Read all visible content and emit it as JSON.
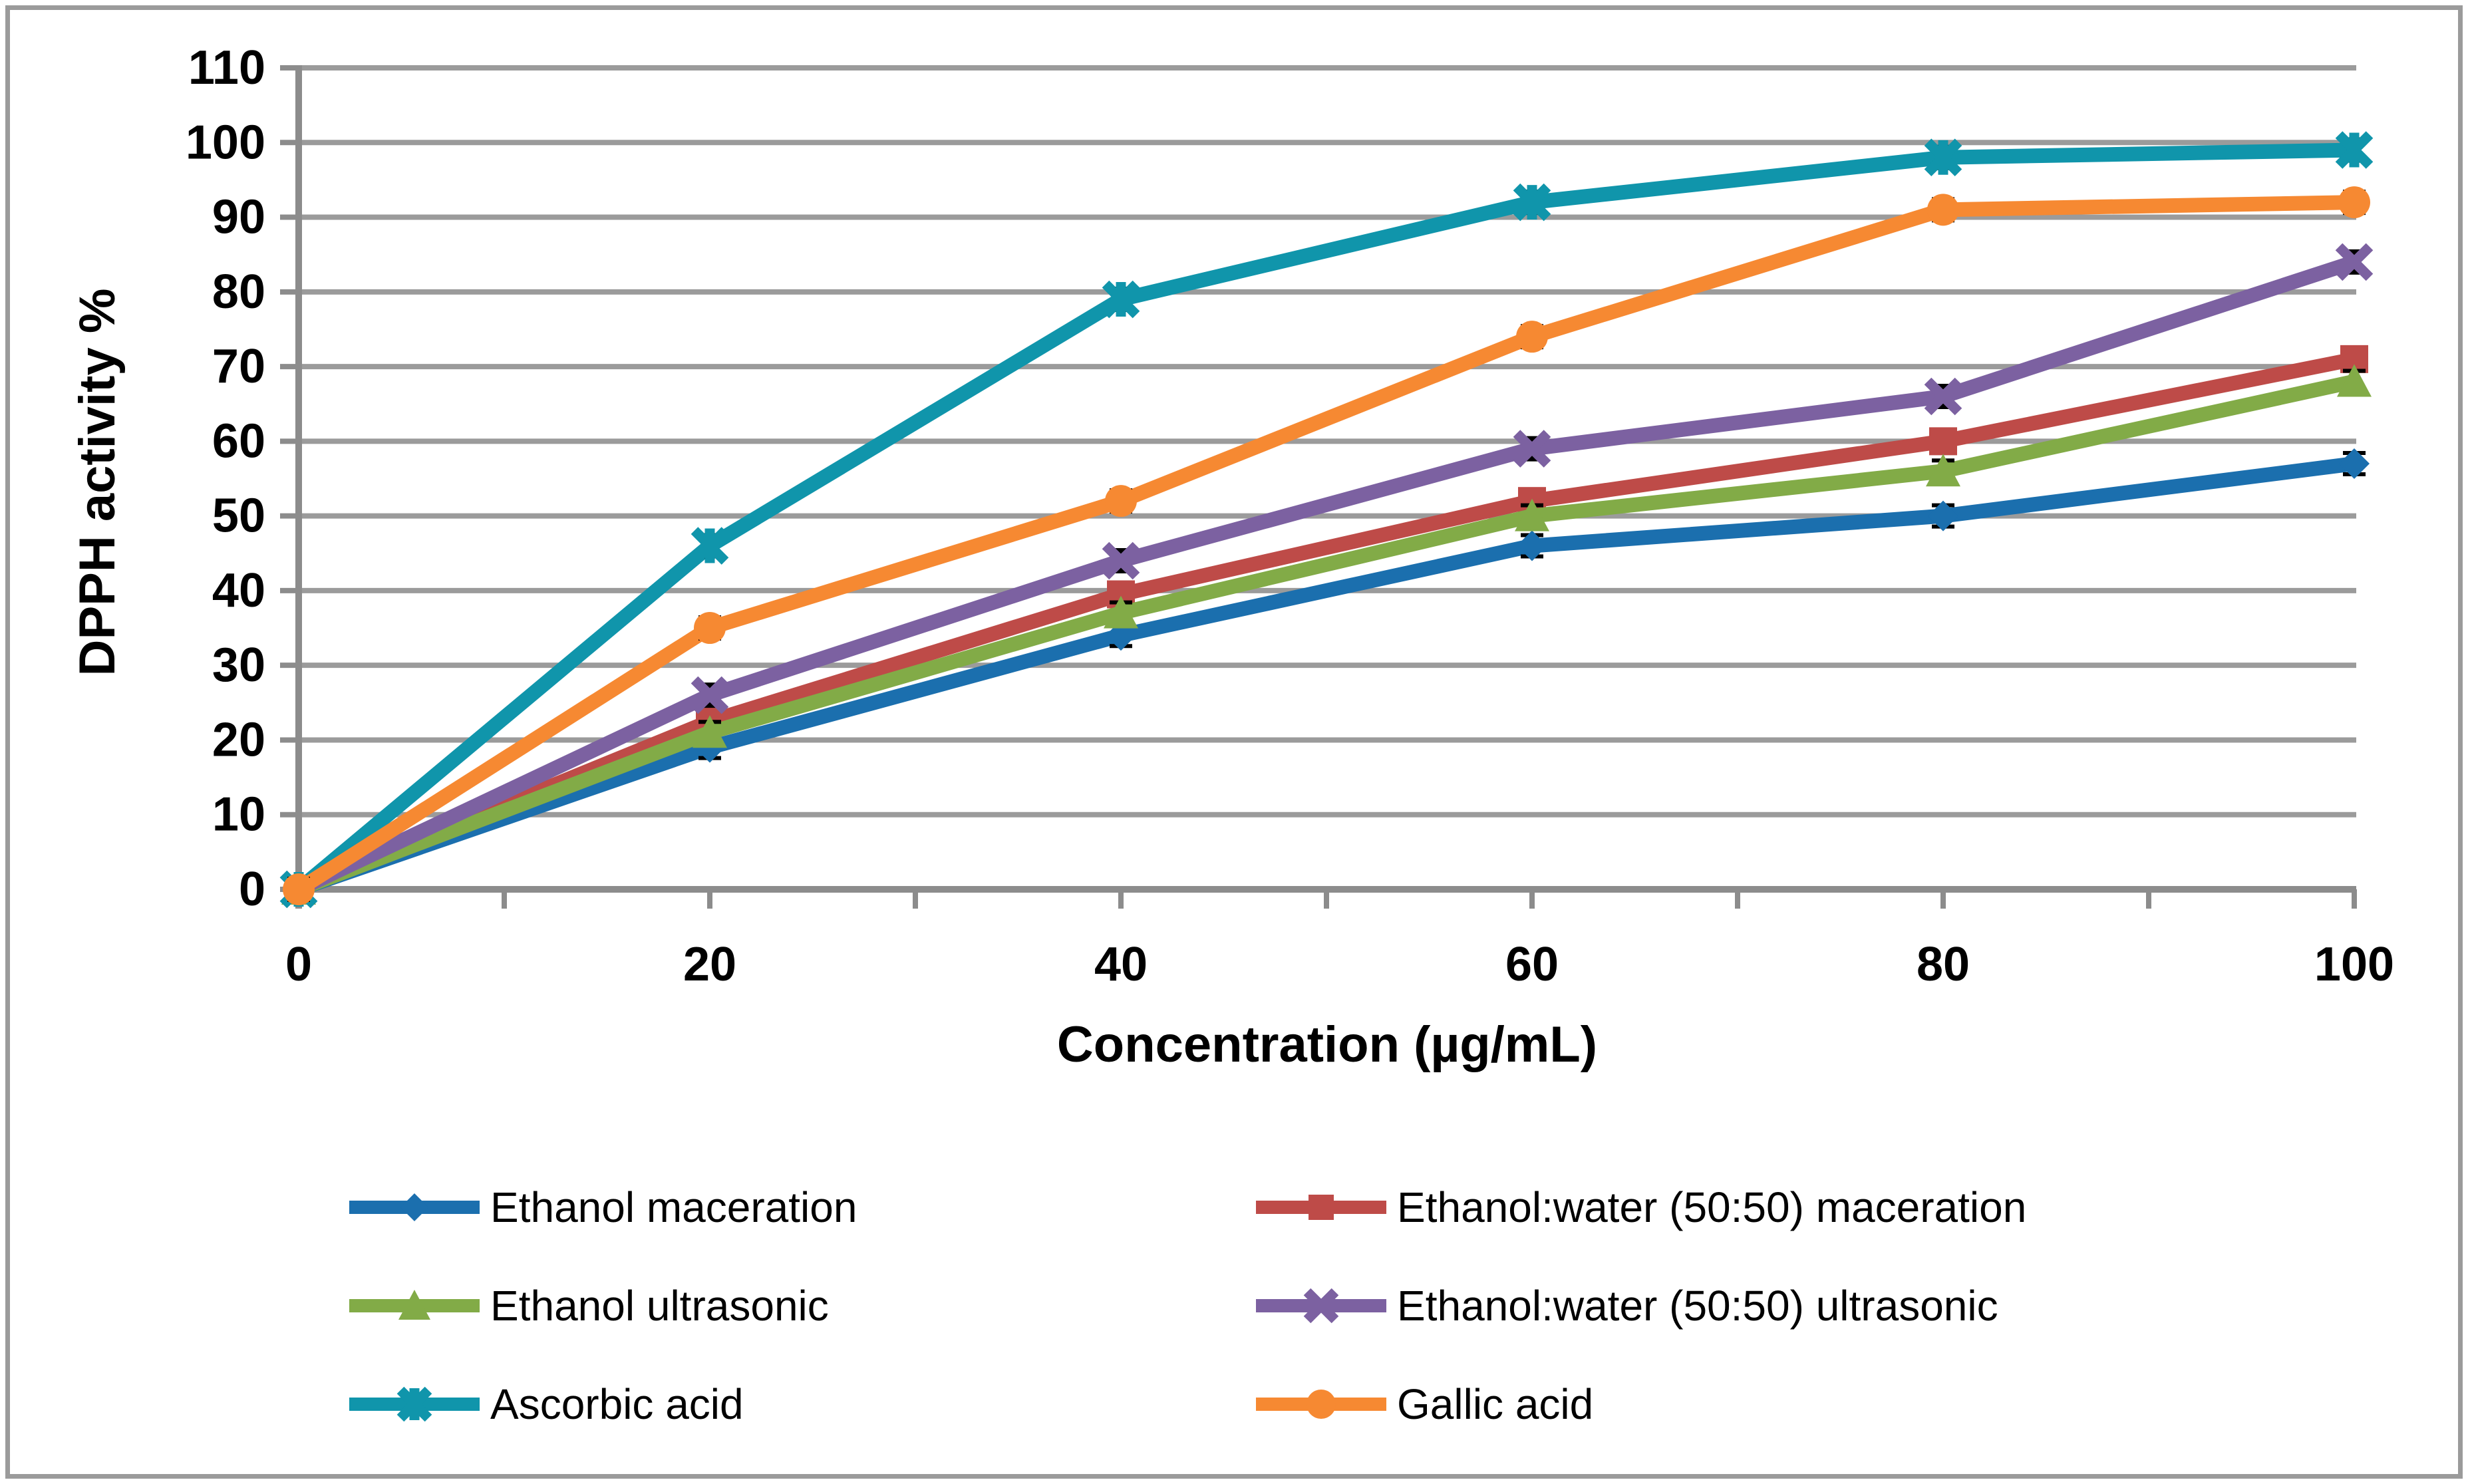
{
  "chart_data": {
    "type": "line",
    "title": "",
    "xlabel": "Concentration (µg/mL)",
    "ylabel": "DPPH activity %",
    "x": [
      0,
      20,
      40,
      60,
      80,
      100
    ],
    "xticks": [
      0,
      20,
      40,
      60,
      80,
      100
    ],
    "x_minor_tick_step": 10,
    "yticks": [
      0,
      10,
      20,
      30,
      40,
      50,
      60,
      70,
      80,
      90,
      100,
      110
    ],
    "ylim": [
      0,
      110
    ],
    "xlim": [
      0,
      100
    ],
    "grid": "horizontal",
    "error_bars": true,
    "legend_position": "bottom-two-columns",
    "series": [
      {
        "name": "Ethanol maceration",
        "color": "#1b6fae",
        "marker": "diamond",
        "values": [
          0,
          19,
          34,
          46,
          50,
          57
        ]
      },
      {
        "name": "Ethanol:water (50:50) maceration",
        "color": "#be4b48",
        "marker": "square",
        "values": [
          0,
          22.5,
          39.5,
          52,
          60,
          71
        ]
      },
      {
        "name": "Ethanol ultrasonic",
        "color": "#82ab47",
        "marker": "triangle",
        "values": [
          0,
          21,
          37,
          50,
          56,
          68
        ]
      },
      {
        "name": "Ethanol:water (50:50) ultrasonic",
        "color": "#7c61a1",
        "marker": "x",
        "values": [
          0,
          26,
          44,
          59,
          66,
          84
        ]
      },
      {
        "name": "Ascorbic acid",
        "color": "#1095ab",
        "marker": "asterisk",
        "values": [
          0,
          46,
          79,
          92,
          98,
          99
        ]
      },
      {
        "name": "Gallic acid",
        "color": "#f68932",
        "marker": "circle",
        "values": [
          0,
          35,
          52,
          74,
          91,
          92
        ]
      }
    ],
    "colors": {
      "gridline": "#9b9b9b",
      "axis": "#8c8c8c",
      "tick_label": "#000000",
      "error_bar": "#000000",
      "border": "#9b9b9b",
      "background": "#ffffff"
    }
  },
  "legend": {
    "rows": [
      {
        "left_index": 0,
        "right_index": 1
      },
      {
        "left_index": 2,
        "right_index": 3
      },
      {
        "left_index": 4,
        "right_index": 5
      }
    ]
  }
}
